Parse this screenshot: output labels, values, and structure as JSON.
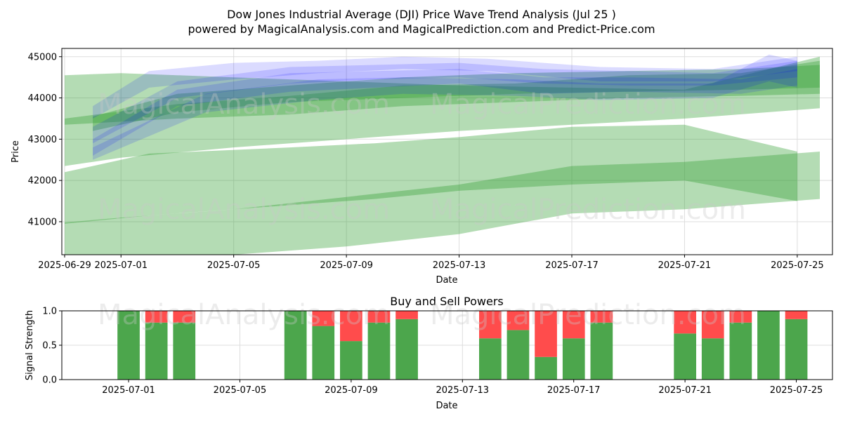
{
  "title_line1": "Dow Jones Industrial Average (DJI) Price Wave Trend Analysis (Jul 25 )",
  "title_line2": "powered by MagicalAnalysis.com and MagicalPrediction.com and Predict-Price.com",
  "watermarks": [
    "MagicalAnalysis.com",
    "MagicalPrediction.com"
  ],
  "chart_data": [
    {
      "type": "area",
      "xlabel": "Date",
      "ylabel": "Price",
      "ylim": [
        40200,
        45200
      ],
      "xlim": [
        "2025-06-29",
        "2025-07-26"
      ],
      "x_tick_labels": [
        "2025-06-29",
        "2025-07-01",
        "2025-07-05",
        "2025-07-09",
        "2025-07-13",
        "2025-07-17",
        "2025-07-21",
        "2025-07-25"
      ],
      "y_ticks": [
        41000,
        42000,
        43000,
        44000,
        45000
      ],
      "grid": true,
      "series_colors": {
        "blue": "#0000ff",
        "green": "#2e9e2e"
      },
      "blue_bands": [
        {
          "x": [
            "2025-06-30",
            "2025-07-02",
            "2025-07-05",
            "2025-07-08",
            "2025-07-11",
            "2025-07-14",
            "2025-07-18",
            "2025-07-22",
            "2025-07-25"
          ],
          "upper": [
            43800,
            44650,
            44850,
            44900,
            45000,
            44950,
            44750,
            44700,
            45000
          ],
          "lower": [
            43500,
            44250,
            44450,
            44600,
            44700,
            44650,
            44400,
            44400,
            44650
          ]
        },
        {
          "x": [
            "2025-06-30",
            "2025-07-03",
            "2025-07-07",
            "2025-07-10",
            "2025-07-13",
            "2025-07-16",
            "2025-07-19",
            "2025-07-22",
            "2025-07-25"
          ],
          "upper": [
            43300,
            44400,
            44750,
            44800,
            44850,
            44700,
            44650,
            44600,
            44900
          ],
          "lower": [
            42900,
            44000,
            44350,
            44450,
            44500,
            44350,
            44300,
            44300,
            44500
          ]
        },
        {
          "x": [
            "2025-06-30",
            "2025-07-03",
            "2025-07-07",
            "2025-07-10",
            "2025-07-13",
            "2025-07-16",
            "2025-07-19",
            "2025-07-23",
            "2025-07-25"
          ],
          "upper": [
            43000,
            44200,
            44600,
            44650,
            44700,
            44500,
            44500,
            44450,
            44700
          ],
          "lower": [
            42600,
            43800,
            44150,
            44250,
            44350,
            44100,
            44150,
            44100,
            44300
          ]
        },
        {
          "x": [
            "2025-06-30",
            "2025-07-04",
            "2025-07-08",
            "2025-07-11",
            "2025-07-15",
            "2025-07-18",
            "2025-07-22",
            "2025-07-24",
            "2025-07-25"
          ],
          "upper": [
            42800,
            44100,
            44450,
            44500,
            44450,
            44350,
            44350,
            45050,
            44900
          ],
          "lower": [
            42500,
            43650,
            43950,
            44100,
            44050,
            43950,
            44000,
            44400,
            44250
          ]
        }
      ],
      "green_bands": [
        {
          "x": [
            "2025-06-29",
            "2025-07-01",
            "2025-07-05",
            "2025-07-09",
            "2025-07-13",
            "2025-07-17",
            "2025-07-21",
            "2025-07-25.8"
          ],
          "upper": [
            44550,
            44600,
            44500,
            44400,
            44300,
            44250,
            44200,
            45000
          ],
          "lower": [
            42350,
            42550,
            42800,
            43000,
            43200,
            43350,
            43500,
            43750
          ]
        },
        {
          "x": [
            "2025-06-29",
            "2025-07-03",
            "2025-07-07",
            "2025-07-11",
            "2025-07-15",
            "2025-07-19",
            "2025-07-23",
            "2025-07-25.8"
          ],
          "upper": [
            43500,
            43850,
            44050,
            44300,
            44350,
            44550,
            44600,
            44900
          ],
          "lower": [
            43350,
            43500,
            43600,
            43800,
            43900,
            44000,
            44050,
            44100
          ]
        },
        {
          "x": [
            "2025-06-29",
            "2025-07-02",
            "2025-07-07",
            "2025-07-10",
            "2025-07-13",
            "2025-07-17",
            "2025-07-21",
            "2025-07-25"
          ],
          "upper": [
            42200,
            42650,
            42800,
            42900,
            43050,
            43300,
            43350,
            42700
          ],
          "lower": [
            40950,
            41150,
            41400,
            41550,
            41750,
            41900,
            42000,
            41500
          ]
        },
        {
          "x": [
            "2025-06-29",
            "2025-07-01",
            "2025-07-05",
            "2025-07-09",
            "2025-07-13",
            "2025-07-17",
            "2025-07-21",
            "2025-07-25.8"
          ],
          "upper": [
            40980,
            41100,
            41300,
            41600,
            41900,
            42350,
            42450,
            42700
          ],
          "lower": [
            40200,
            40200,
            40200,
            40400,
            40700,
            41200,
            41300,
            41550
          ]
        },
        {
          "x": [
            "2025-06-30",
            "2025-07-03",
            "2025-07-07",
            "2025-07-11",
            "2025-07-15",
            "2025-07-19",
            "2025-07-23",
            "2025-07-25.8"
          ],
          "upper": [
            43550,
            44100,
            44300,
            44500,
            44600,
            44650,
            44700,
            44800
          ],
          "lower": [
            43200,
            43650,
            43900,
            44000,
            44100,
            44150,
            44200,
            44250
          ]
        }
      ]
    },
    {
      "type": "bar",
      "title": "Buy and Sell Powers",
      "xlabel": "Date",
      "ylabel": "Signal Strength",
      "ylim": [
        0,
        1
      ],
      "y_ticks": [
        "0.0",
        "0.5",
        "1.0"
      ],
      "x_tick_labels": [
        "2025-07-01",
        "2025-07-05",
        "2025-07-09",
        "2025-07-13",
        "2025-07-17",
        "2025-07-21",
        "2025-07-25"
      ],
      "grid": true,
      "buy_color": "#4ca64c",
      "sell_color": "#ff4c4c",
      "categories": [
        "2025-07-01",
        "2025-07-02",
        "2025-07-03",
        "2025-07-07",
        "2025-07-08",
        "2025-07-09",
        "2025-07-10",
        "2025-07-11",
        "2025-07-14",
        "2025-07-15",
        "2025-07-16",
        "2025-07-17",
        "2025-07-18",
        "2025-07-21",
        "2025-07-22",
        "2025-07-23",
        "2025-07-24",
        "2025-07-25"
      ],
      "series": [
        {
          "values": [
            1.0,
            0.83,
            0.83,
            1.0,
            0.78,
            0.56,
            0.83,
            0.88,
            0.6,
            0.72,
            0.33,
            0.6,
            0.83,
            0.67,
            0.6,
            0.83,
            1.0,
            0.88
          ]
        },
        {
          "values": [
            0.0,
            0.17,
            0.17,
            0.0,
            0.22,
            0.44,
            0.17,
            0.12,
            0.4,
            0.28,
            0.67,
            0.4,
            0.17,
            0.33,
            0.4,
            0.17,
            0.0,
            0.12
          ]
        }
      ]
    }
  ]
}
